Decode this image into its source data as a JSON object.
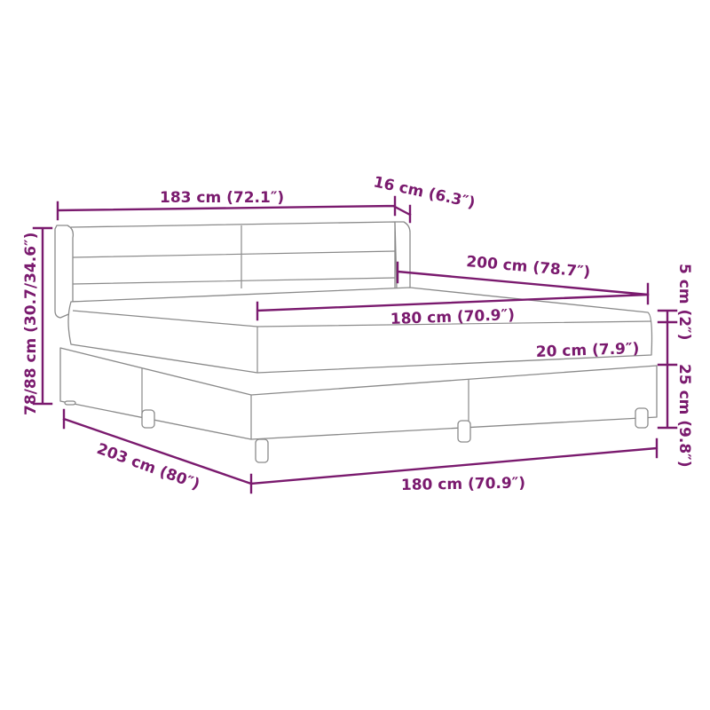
{
  "accent_color": "#7a1a6e",
  "labels": {
    "headboard_width": "183 cm (72.1″)",
    "headboard_depth": "16 cm (6.3″)",
    "mattress_length": "200 cm (78.7″)",
    "mattress_width": "180 cm (70.9″)",
    "topper_height": "5 cm (2″)",
    "mattress_height": "20 cm (7.9″)",
    "base_height": "25 cm (9.8″)",
    "total_height": "78/88 cm (30.7/34.6″)",
    "total_length": "203 cm (80″)",
    "base_width": "180 cm (70.9″)"
  }
}
